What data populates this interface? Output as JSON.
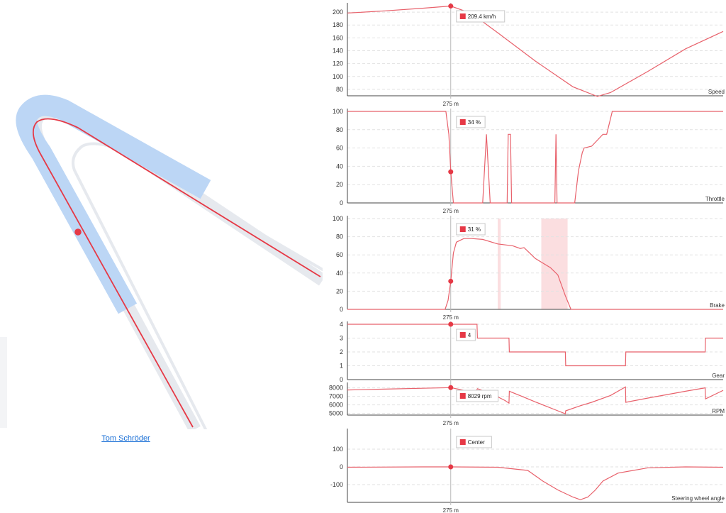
{
  "driver": {
    "name": "Tom Schröder"
  },
  "cursor": {
    "distance": 275,
    "label": "275 m"
  },
  "colors": {
    "line": "#e8616b",
    "dot": "#e63946",
    "overlay": "#bcd6f5",
    "track": "#e6e9ee"
  },
  "chart_data": [
    {
      "type": "line",
      "id": "speed",
      "label": "Speed",
      "tooltip": "209.4 km/h",
      "cursor_value": 209.4,
      "xlim": [
        0,
        1000
      ],
      "ylim": [
        70,
        210
      ],
      "ticks": [
        80,
        100,
        120,
        140,
        160,
        180,
        200
      ],
      "x": [
        0,
        100,
        200,
        275,
        330,
        400,
        500,
        600,
        665,
        700,
        800,
        900,
        1000
      ],
      "y": [
        198.5,
        202,
        206,
        209.4,
        198,
        168,
        124,
        84,
        69,
        75,
        108,
        143,
        170
      ]
    },
    {
      "type": "line",
      "id": "throttle",
      "label": "Throttle",
      "tooltip": "34 %",
      "cursor_value": 34,
      "xlim": [
        0,
        1000
      ],
      "ylim": [
        0,
        100
      ],
      "ticks": [
        0,
        20,
        40,
        60,
        80,
        100
      ],
      "x": [
        0,
        262,
        270,
        275,
        282,
        288,
        290,
        360,
        370,
        380,
        425,
        428,
        431,
        434,
        437,
        552,
        555,
        558,
        605,
        615,
        625,
        630,
        650,
        680,
        690,
        705,
        800,
        1000
      ],
      "y": [
        100,
        100,
        75,
        34,
        0,
        0,
        0,
        0,
        75,
        0,
        0,
        75,
        75,
        75,
        0,
        0,
        75,
        0,
        0,
        35,
        55,
        60,
        62,
        75,
        75,
        100,
        100,
        100
      ]
    },
    {
      "type": "line",
      "id": "brake",
      "label": "Brake",
      "tooltip": "31 %",
      "cursor_value": 31,
      "xlim": [
        0,
        1000
      ],
      "ylim": [
        0,
        100
      ],
      "ticks": [
        0,
        20,
        40,
        60,
        80,
        100
      ],
      "x": [
        0,
        260,
        268,
        275,
        282,
        290,
        300,
        310,
        330,
        360,
        400,
        440,
        460,
        470,
        480,
        500,
        540,
        560,
        580,
        590,
        595,
        600,
        1000
      ],
      "y": [
        0,
        0,
        10,
        31,
        62,
        74,
        76,
        78,
        78,
        77,
        72,
        70,
        67,
        68,
        64,
        56,
        46,
        38,
        15,
        5,
        0,
        0,
        0
      ],
      "bands": [
        [
          400,
          408
        ],
        [
          516,
          586
        ]
      ]
    },
    {
      "type": "line",
      "id": "gear",
      "label": "Gear",
      "tooltip": "4",
      "cursor_value": 4,
      "xlim": [
        0,
        1000
      ],
      "ylim": [
        0,
        4
      ],
      "ticks": [
        0,
        1,
        2,
        3,
        4
      ],
      "x": [
        0,
        345,
        346,
        430,
        431,
        580,
        581,
        740,
        741,
        952,
        953,
        1000
      ],
      "y": [
        4,
        4,
        3,
        3,
        2,
        2,
        1,
        1,
        2,
        2,
        3,
        3
      ]
    },
    {
      "type": "line",
      "id": "rpm",
      "label": "RPM",
      "tooltip": "8029 rpm",
      "cursor_value": 8029,
      "xlim": [
        0,
        1000
      ],
      "ylim": [
        4800,
        8300
      ],
      "ticks": [
        5000,
        6000,
        7000,
        8000
      ],
      "x": [
        0,
        100,
        200,
        275,
        300,
        340,
        346,
        380,
        420,
        430,
        431,
        470,
        500,
        560,
        580,
        581,
        620,
        650,
        700,
        740,
        741,
        800,
        900,
        952,
        953,
        1000
      ],
      "y": [
        7750,
        7850,
        7950,
        8029,
        7800,
        7400,
        7900,
        7400,
        6500,
        6200,
        7600,
        6900,
        6350,
        5300,
        4950,
        5300,
        5900,
        6300,
        7100,
        8100,
        6300,
        6800,
        7600,
        8000,
        6700,
        7700
      ]
    },
    {
      "type": "line",
      "id": "steering",
      "label": "Steering wheel angle",
      "tooltip": "Center",
      "cursor_value": 0,
      "xlim": [
        0,
        1000
      ],
      "ylim": [
        -200,
        200
      ],
      "ticks": [
        -100,
        0,
        100
      ],
      "x": [
        0,
        200,
        275,
        400,
        480,
        520,
        560,
        600,
        620,
        640,
        660,
        680,
        720,
        800,
        900,
        1000
      ],
      "y": [
        -2,
        0,
        0,
        -2,
        -20,
        -80,
        -130,
        -170,
        -185,
        -170,
        -130,
        -80,
        -35,
        -5,
        0,
        -2
      ]
    }
  ]
}
